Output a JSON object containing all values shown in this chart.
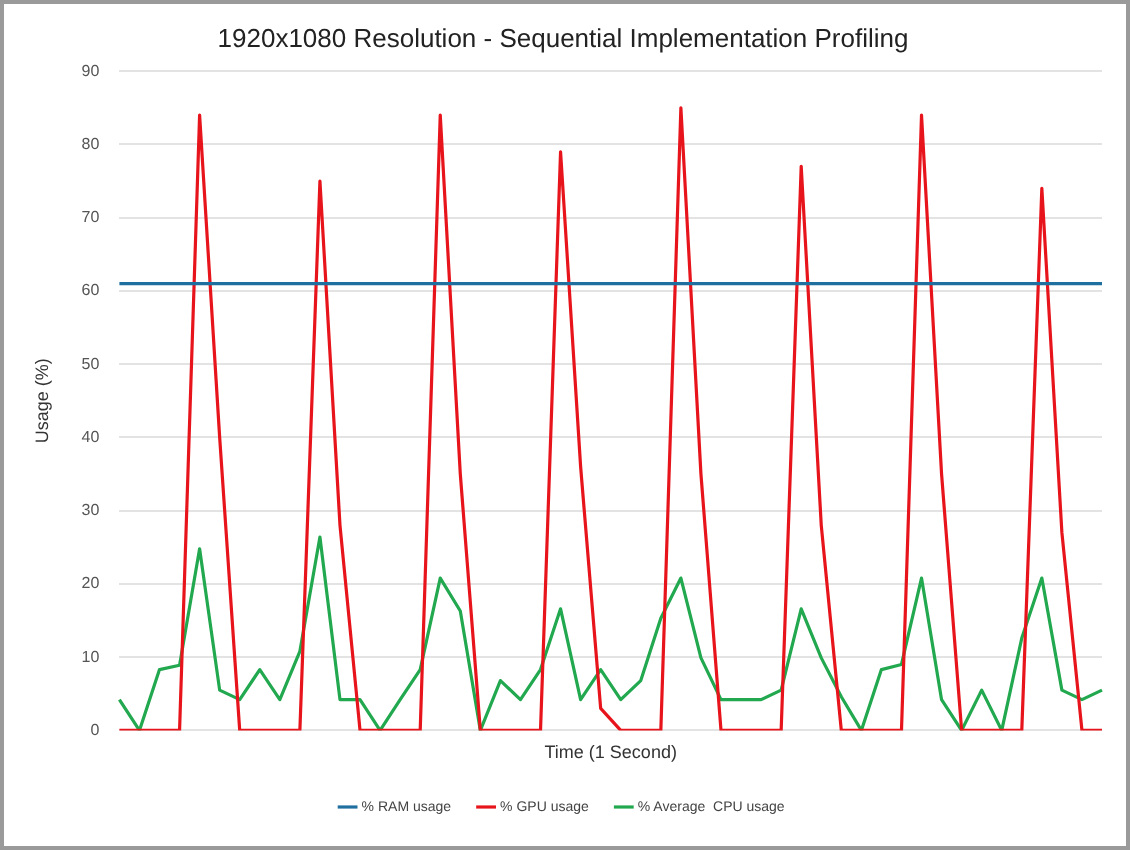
{
  "chart_data": {
    "type": "line",
    "title": "1920x1080 Resolution - Sequential Implementation Profiling",
    "xlabel": "Time (1 Second)",
    "ylabel": "Usage (%)",
    "categories": [
      null,
      null,
      null,
      null,
      null,
      null,
      null,
      null,
      null,
      null,
      null,
      null,
      null,
      null,
      null,
      null,
      null,
      null,
      null,
      null,
      null,
      null,
      null,
      null,
      null,
      null,
      null,
      null,
      null,
      null,
      null,
      null,
      null,
      null,
      null,
      null,
      null,
      null,
      null,
      null,
      null,
      null,
      null,
      null,
      null,
      null,
      null,
      null,
      null,
      null
    ],
    "series": [
      {
        "name": "% RAM usage",
        "color": "#1f6f9f",
        "values": [
          61,
          61,
          61,
          61,
          61,
          61,
          61,
          61,
          61,
          61,
          61,
          61,
          61,
          61,
          61,
          61,
          61,
          61,
          61,
          61,
          61,
          61,
          61,
          61,
          61,
          61,
          61,
          61,
          61,
          61,
          61,
          61,
          61,
          61,
          61,
          61,
          61,
          61,
          61,
          61,
          61,
          61,
          61,
          61,
          61,
          61,
          61,
          61,
          61,
          61
        ]
      },
      {
        "name": "% GPU usage",
        "color": "#e8141b",
        "values": [
          0,
          0,
          0,
          0,
          84,
          40,
          0,
          0,
          0,
          0,
          75,
          28,
          0,
          0,
          0,
          0,
          84,
          35,
          0,
          0,
          0,
          0,
          79,
          36,
          3,
          0,
          0,
          0,
          85,
          35,
          0,
          0,
          0,
          0,
          77,
          28,
          0,
          0,
          0,
          0,
          84,
          35,
          0,
          0,
          0,
          0,
          74,
          27,
          0,
          0
        ]
      },
      {
        "name": "% Average  CPU usage",
        "color": "#22a84f",
        "values": [
          4.2,
          0,
          8.3,
          8.9,
          24.8,
          5.5,
          4.2,
          8.3,
          4.2,
          10.8,
          26.4,
          4.2,
          4.2,
          0,
          4.2,
          8.3,
          20.8,
          16.3,
          0,
          6.8,
          4.2,
          8.3,
          16.6,
          4.2,
          8.3,
          4.2,
          6.8,
          15.3,
          20.8,
          9.9,
          4.2,
          4.2,
          4.2,
          5.5,
          16.6,
          9.9,
          4.6,
          0,
          8.3,
          9,
          20.8,
          4.2,
          0,
          5.5,
          0,
          12.6,
          20.8,
          5.5,
          4.2,
          5.5
        ]
      }
    ],
    "ylim": [
      0,
      90
    ],
    "yticks": [
      0,
      10,
      20,
      30,
      40,
      50,
      60,
      70,
      80,
      90
    ],
    "grid": "y",
    "legend": "bottom",
    "tick_labels": "y",
    "marker": "none",
    "line_style": "solid"
  }
}
